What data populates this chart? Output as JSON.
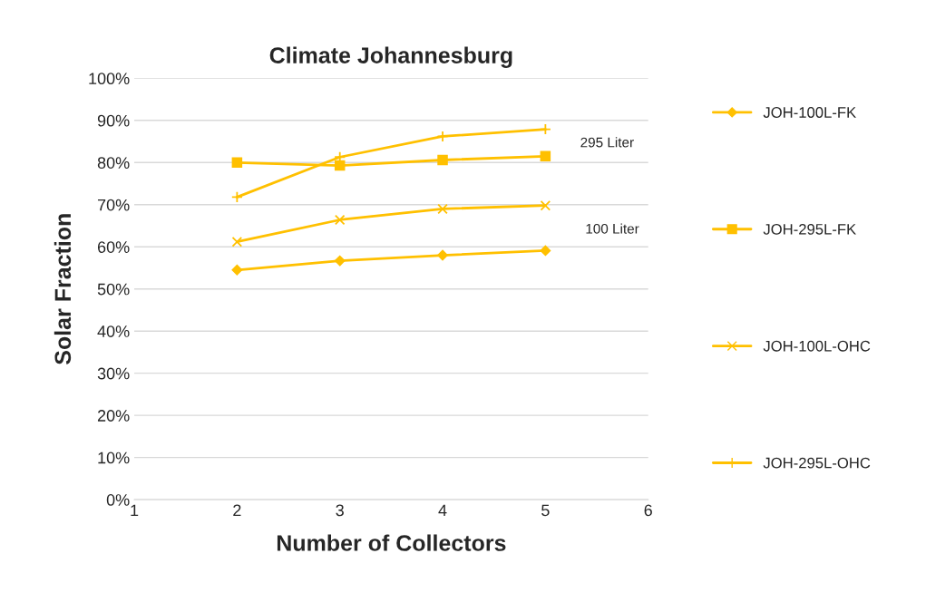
{
  "chart_data": {
    "type": "line",
    "title": "Climate Johannesburg",
    "xlabel": "Number of Collectors",
    "ylabel": "Solar Fraction",
    "x": [
      2,
      3,
      4,
      5
    ],
    "series": [
      {
        "name": "JOH-100L-FK",
        "color": "#ffc000",
        "marker": "diamond",
        "values": [
          54.5,
          56.7,
          58.0,
          59.1
        ]
      },
      {
        "name": "JOH-295L-FK",
        "color": "#ffc000",
        "marker": "square",
        "values": [
          80.0,
          79.3,
          80.6,
          81.5
        ]
      },
      {
        "name": "JOH-100L-OHC",
        "color": "#ffc000",
        "marker": "cross",
        "values": [
          61.2,
          66.4,
          69.0,
          69.8
        ]
      },
      {
        "name": "JOH-295L-OHC",
        "color": "#ffc000",
        "marker": "plus",
        "values": [
          71.8,
          81.3,
          86.2,
          87.9
        ]
      }
    ],
    "xlim": [
      1,
      6
    ],
    "xticks": [
      1,
      2,
      3,
      4,
      5,
      6
    ],
    "ylim": [
      0,
      100
    ],
    "yticks": [
      {
        "value": 0,
        "label": "0%"
      },
      {
        "value": 10,
        "label": "10%"
      },
      {
        "value": 20,
        "label": "20%"
      },
      {
        "value": 30,
        "label": "30%"
      },
      {
        "value": 40,
        "label": "40%"
      },
      {
        "value": 50,
        "label": "50%"
      },
      {
        "value": 60,
        "label": "60%"
      },
      {
        "value": 70,
        "label": "70%"
      },
      {
        "value": 80,
        "label": "80%"
      },
      {
        "value": 90,
        "label": "90%"
      },
      {
        "value": 100,
        "label": "100%"
      }
    ],
    "annotations": [
      "295 Liter",
      "100 Liter"
    ],
    "grid": "y",
    "legend": "right",
    "line_style": "solid"
  }
}
